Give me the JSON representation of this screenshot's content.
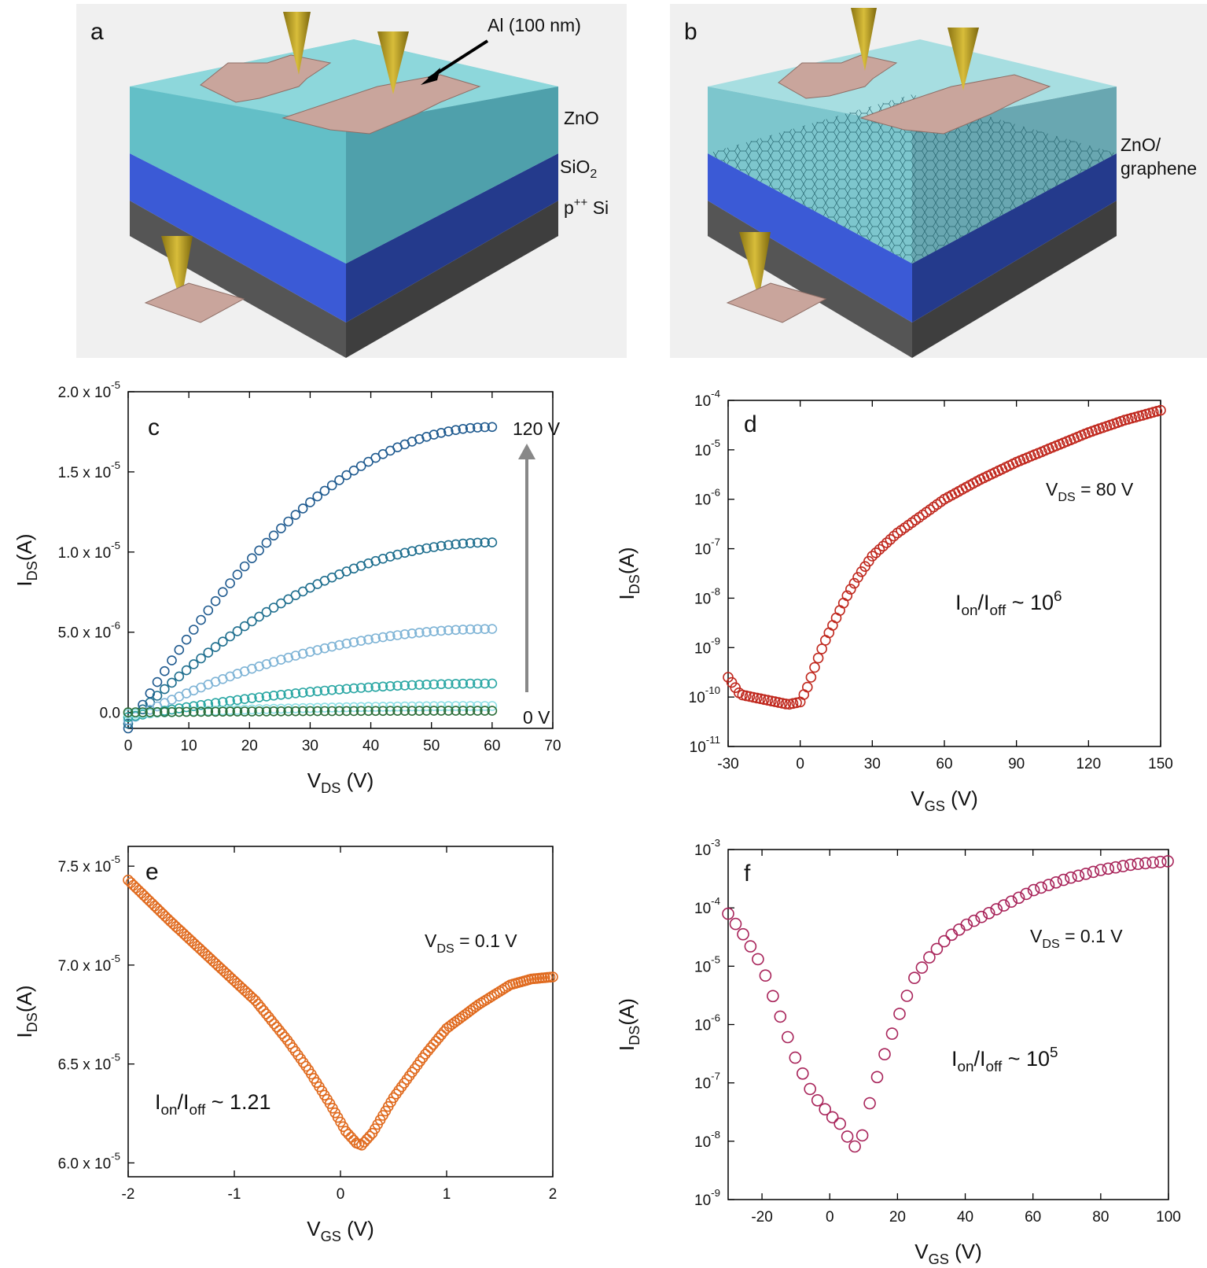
{
  "panels": {
    "a": {
      "label": "a",
      "al": "Al (100 nm)",
      "zno": "ZnO",
      "sio2": "SiO",
      "sio2_sub": "2",
      "si": "p",
      "si_sup": "++",
      "si_tail": " Si"
    },
    "b": {
      "label": "b",
      "zno_g1": "ZnO/",
      "zno_g2": "graphene"
    }
  },
  "chart_data": [
    {
      "panel": "c",
      "type": "scatter",
      "marker": "open-circle",
      "xlabel": "V",
      "xlabel_sub": "DS",
      "xlabel_tail": " (V)",
      "ylabel": "I",
      "ylabel_sub": "DS",
      "ylabel_tail": "(A)",
      "xlim": [
        0,
        70
      ],
      "ylim": [
        -1e-07,
        2e-05
      ],
      "xticks": [
        "0",
        "10",
        "20",
        "30",
        "40",
        "50",
        "60",
        "70"
      ],
      "yticks": [
        {
          "base": "2.0 x 10",
          "exp": "-5"
        },
        {
          "base": "1.5 x 10",
          "exp": "-5"
        },
        {
          "base": "1.0 x 10",
          "exp": "-5"
        },
        {
          "base": "5.0 x 10",
          "exp": "-6"
        },
        {
          "base": "0.0",
          "exp": ""
        }
      ],
      "annotation_top": "120 V",
      "annotation_bottom": "0 V",
      "series": [
        {
          "color": "#1f5a8f",
          "ids_at_60V": 1.78e-05,
          "offset_at_0V": -1e-06
        },
        {
          "color": "#1e6e8e",
          "ids_at_60V": 1.06e-05,
          "offset_at_0V": -7e-07
        },
        {
          "color": "#7fb4d6",
          "ids_at_60V": 5.2e-06,
          "offset_at_0V": -5e-07
        },
        {
          "color": "#2aa7a4",
          "ids_at_60V": 1.8e-06,
          "offset_at_0V": -3e-07
        },
        {
          "color": "#8fe0e6",
          "ids_at_60V": 4e-07,
          "offset_at_0V": -1e-07
        },
        {
          "color": "#2c6e3a",
          "ids_at_60V": 1e-07,
          "offset_at_0V": 0
        }
      ]
    },
    {
      "panel": "d",
      "type": "scatter",
      "marker": "open-circle",
      "yscale": "log",
      "xlabel": "V",
      "xlabel_sub": "GS",
      "xlabel_tail": " (V)",
      "ylabel": "I",
      "ylabel_sub": "DS",
      "ylabel_tail": "(A)",
      "xlim": [
        -30,
        150
      ],
      "ylim_exp": [
        -11,
        -4
      ],
      "xticks": [
        "-30",
        "0",
        "30",
        "60",
        "90",
        "120",
        "150"
      ],
      "ytick_exps": [
        "-4",
        "-5",
        "-6",
        "-7",
        "-8",
        "-9",
        "-10",
        "-11"
      ],
      "annotation": {
        "v": "V",
        "sub": "DS",
        "tail": " = 80 V"
      },
      "ratio": {
        "text": "I",
        "sub1": "on",
        "mid": "/I",
        "sub2": "off",
        "tail": " ~ 10",
        "sup": "6"
      },
      "color": "#c0281e",
      "x": [
        -30,
        -25,
        -20,
        -15,
        -10,
        -5,
        0,
        3,
        6,
        10,
        15,
        20,
        25,
        30,
        40,
        50,
        60,
        75,
        90,
        105,
        120,
        135,
        150
      ],
      "log10_y": [
        -9.6,
        -9.95,
        -10.0,
        -10.05,
        -10.1,
        -10.15,
        -10.1,
        -9.8,
        -9.4,
        -8.9,
        -8.4,
        -7.9,
        -7.5,
        -7.15,
        -6.7,
        -6.35,
        -6.0,
        -5.6,
        -5.25,
        -4.95,
        -4.65,
        -4.4,
        -4.2
      ]
    },
    {
      "panel": "e",
      "type": "scatter",
      "marker": "open-circle",
      "xlabel": "V",
      "xlabel_sub": "GS",
      "xlabel_tail": " (V)",
      "ylabel": "I",
      "ylabel_sub": "DS",
      "ylabel_tail": "(A)",
      "xlim": [
        -2,
        2
      ],
      "ylim": [
        5.93e-05,
        7.6e-05
      ],
      "xticks": [
        "-2",
        "-1",
        "0",
        "1",
        "2"
      ],
      "yticks": [
        {
          "base": "7.5 x 10",
          "exp": "-5"
        },
        {
          "base": "7.0 x 10",
          "exp": "-5"
        },
        {
          "base": "6.5 x 10",
          "exp": "-5"
        },
        {
          "base": "6.0 x 10",
          "exp": "-5"
        }
      ],
      "annotation": {
        "v": "V",
        "sub": "DS",
        "tail": " = 0.1 V"
      },
      "ratio": {
        "text": "I",
        "sub1": "on",
        "mid": "/I",
        "sub2": "off",
        "tail": " ~ 1.21"
      },
      "color": "#e06a1e",
      "x": [
        -2,
        -1.6,
        -1.2,
        -0.8,
        -0.5,
        -0.3,
        -0.1,
        0.05,
        0.15,
        0.2,
        0.3,
        0.5,
        0.8,
        1.0,
        1.3,
        1.6,
        1.8,
        2.0
      ],
      "y": [
        7.43e-05,
        7.22e-05,
        7.02e-05,
        6.82e-05,
        6.62e-05,
        6.47e-05,
        6.3e-05,
        6.16e-05,
        6.1e-05,
        6.09e-05,
        6.15e-05,
        6.33e-05,
        6.55e-05,
        6.68e-05,
        6.8e-05,
        6.9e-05,
        6.93e-05,
        6.94e-05
      ]
    },
    {
      "panel": "f",
      "type": "scatter",
      "marker": "open-circle",
      "yscale": "log",
      "xlabel": "V",
      "xlabel_sub": "GS",
      "xlabel_tail": " (V)",
      "ylabel": "I",
      "ylabel_sub": "DS",
      "ylabel_tail": "(A)",
      "xlim": [
        -30,
        100
      ],
      "ylim_exp": [
        -9,
        -3
      ],
      "xticks": [
        "-20",
        "0",
        "20",
        "40",
        "60",
        "80",
        "100"
      ],
      "ytick_exps": [
        "-3",
        "-4",
        "-5",
        "-6",
        "-7",
        "-8",
        "-9"
      ],
      "annotation": {
        "v": "V",
        "sub": "DS",
        "tail": " = 0.1 V"
      },
      "ratio": {
        "text": "I",
        "sub1": "on",
        "mid": "/I",
        "sub2": "off",
        "tail": " ~ 10",
        "sup": "5"
      },
      "color": "#a8245a",
      "x": [
        -30,
        -25,
        -20,
        -15,
        -10,
        -5,
        0,
        3,
        5,
        7,
        9,
        10,
        12,
        15,
        20,
        25,
        30,
        35,
        40,
        50,
        60,
        70,
        80,
        90,
        100
      ],
      "log10_y": [
        -4.1,
        -4.5,
        -5.0,
        -5.8,
        -6.6,
        -7.2,
        -7.55,
        -7.7,
        -7.9,
        -8.1,
        -8.05,
        -7.8,
        -7.3,
        -6.7,
        -5.9,
        -5.2,
        -4.8,
        -4.5,
        -4.3,
        -4.0,
        -3.7,
        -3.5,
        -3.35,
        -3.25,
        -3.2
      ]
    }
  ]
}
